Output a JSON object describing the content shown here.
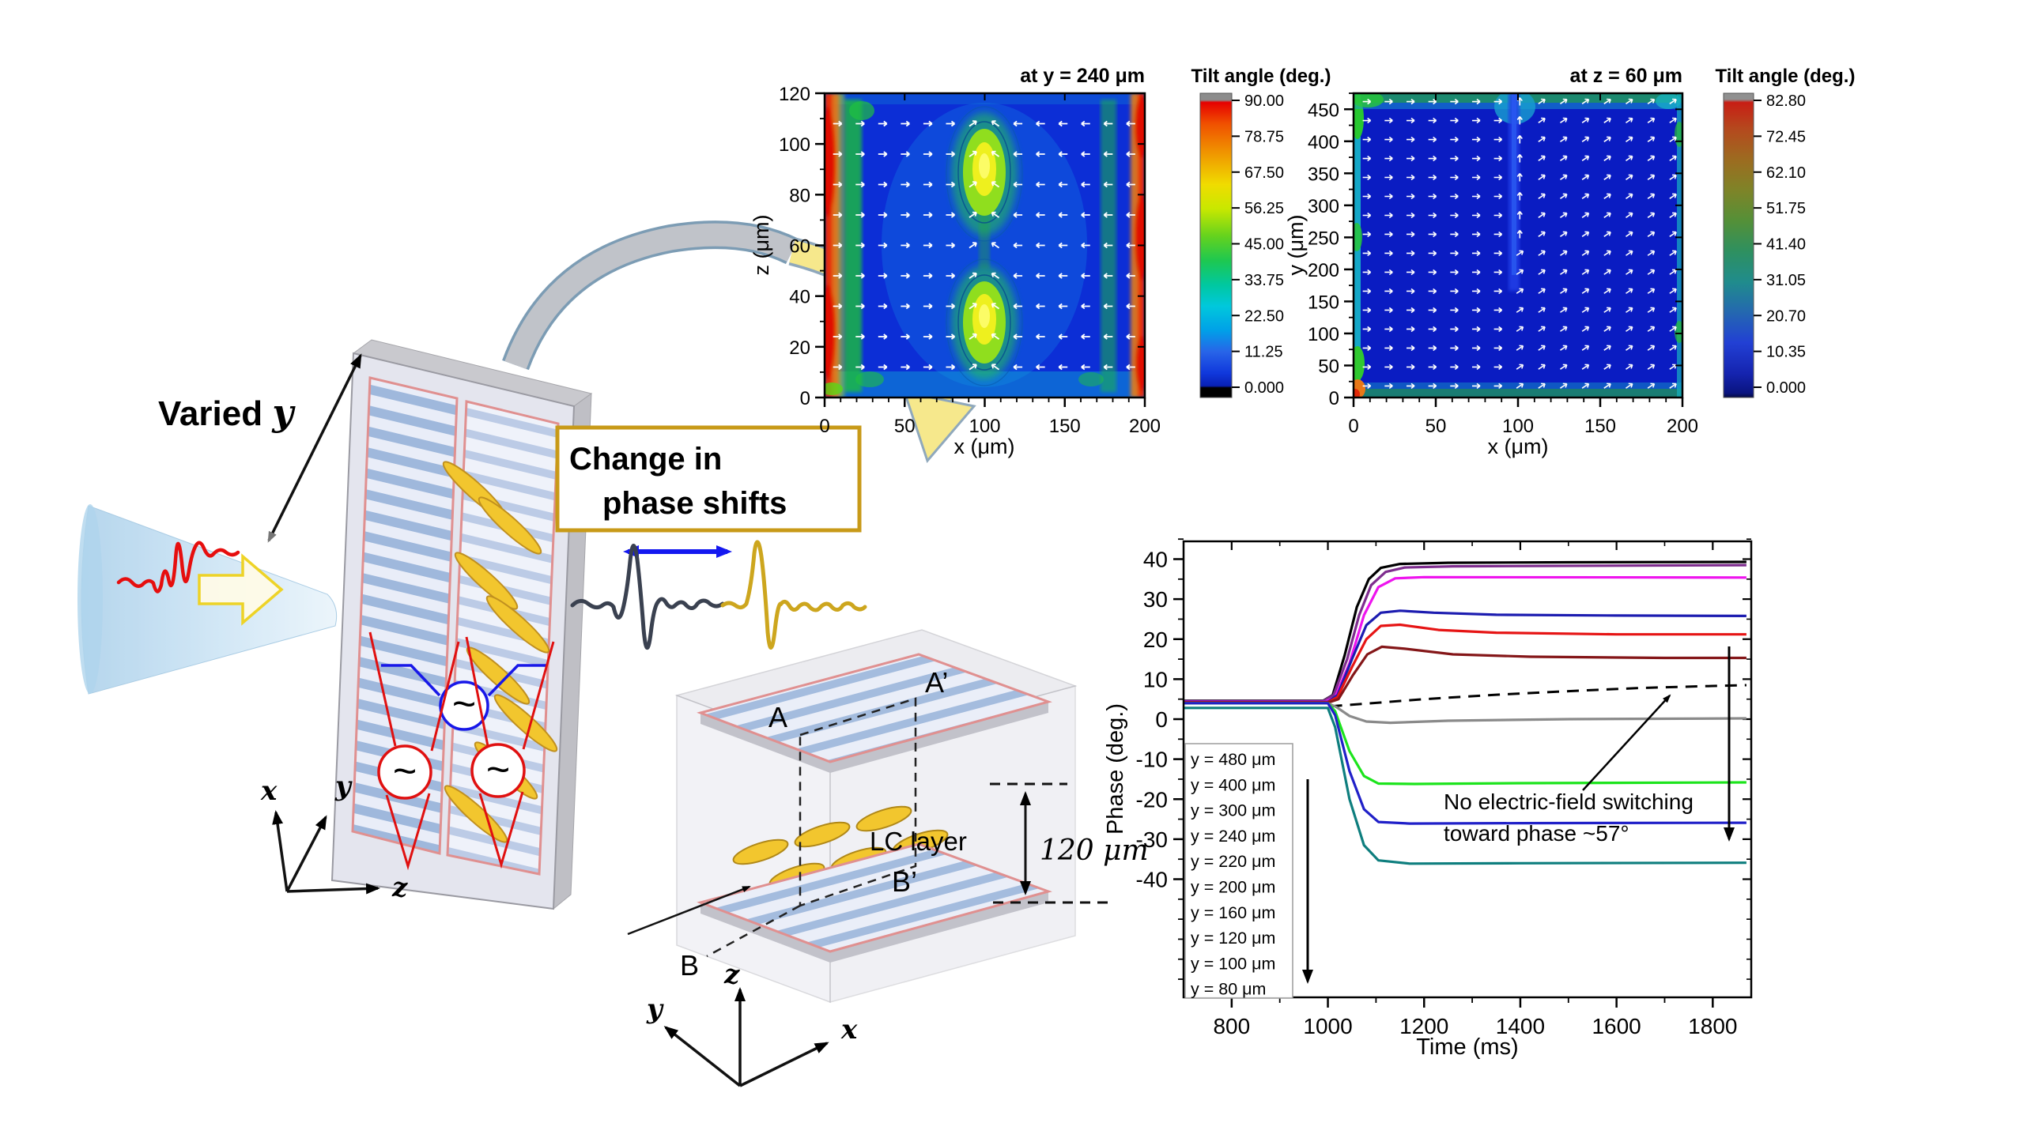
{
  "figure": {
    "left": {
      "varied_label": "Varied",
      "varied_var": "y",
      "axes": {
        "x": "x",
        "y": "y",
        "z": "z"
      },
      "ac_symbol": "~"
    },
    "center": {
      "box_line1": "Change in",
      "box_line2": "phase shifts",
      "cell": {
        "A": "A",
        "A_prime": "A’",
        "B": "B",
        "B_prime": "B’",
        "lc_layer": "LC layer",
        "thickness": "120 μm",
        "axes": {
          "x": "x",
          "y": "y",
          "z": "z"
        }
      }
    }
  },
  "chart_data": [
    {
      "type": "heatmap",
      "id": "tilt-map-xz",
      "title": "at y = 240 μm",
      "colorbar_title": "Tilt angle (deg.)",
      "colorbar_ticks": [
        "90.00",
        "78.75",
        "67.50",
        "56.25",
        "45.00",
        "33.75",
        "22.50",
        "11.25",
        "0.000"
      ],
      "xlabel": "x (μm)",
      "ylabel": "z (μm)",
      "xlim": [
        0,
        200
      ],
      "ylim": [
        0,
        120
      ],
      "xticks": [
        0,
        50,
        100,
        150,
        200
      ],
      "yticks": [
        0,
        20,
        40,
        60,
        80,
        100,
        120
      ],
      "x_minor_step": 10,
      "y_minor_step": 10,
      "quiver": "white director arrows, mostly horizontal",
      "features": [
        {
          "label": "high-tilt red band",
          "x": 0,
          "z": [
            0,
            120
          ],
          "color": "red-orange"
        },
        {
          "label": "high-tilt red band",
          "x": 200,
          "z": [
            0,
            120
          ],
          "color": "red-orange"
        },
        {
          "label": "mid-tilt lobe ~56 deg",
          "x": 100,
          "z": 30,
          "color": "yellow-green"
        },
        {
          "label": "mid-tilt lobe ~56 deg",
          "x": 100,
          "z": 88,
          "color": "yellow-green"
        },
        {
          "label": "green columns",
          "x": 20,
          "color": "green"
        },
        {
          "label": "low-tilt background ~11 deg",
          "color": "blue"
        }
      ]
    },
    {
      "type": "heatmap",
      "id": "tilt-map-xy",
      "title": "at z = 60 μm",
      "colorbar_title": "Tilt angle (deg.)",
      "colorbar_ticks": [
        "82.80",
        "72.45",
        "62.10",
        "51.75",
        "41.40",
        "31.05",
        "20.70",
        "10.35",
        "0.000"
      ],
      "xlabel": "x (μm)",
      "ylabel": "y (μm)",
      "xlim": [
        0,
        200
      ],
      "ylim": [
        0,
        475
      ],
      "xticks": [
        0,
        50,
        100,
        150,
        200
      ],
      "yticks": [
        0,
        50,
        100,
        150,
        200,
        250,
        300,
        350,
        400,
        450
      ],
      "x_minor_step": 10,
      "y_minor_step": 25,
      "quiver": "white director arrows: horizontal on left half, tilted on right half, vertical along center stripe",
      "features": [
        {
          "label": "low-tilt background ~5 deg",
          "color": "dark blue"
        },
        {
          "label": "edge bands ~20-30 deg",
          "color": "green-cyan"
        },
        {
          "label": "hot corner",
          "x": 0,
          "y": 0,
          "color": "orange-red"
        },
        {
          "label": "lighter disclination stripe",
          "x": 100,
          "y": [
            250,
            475
          ],
          "color": "lighter blue"
        }
      ]
    },
    {
      "type": "line",
      "id": "phase-vs-time",
      "xlabel": "Time (ms)",
      "ylabel": "Phase (deg.)",
      "xlim": [
        700,
        1880
      ],
      "ylim": [
        -70,
        45
      ],
      "xticks": [
        800,
        1000,
        1200,
        1400,
        1600,
        1800
      ],
      "yticks": [
        -40,
        -30,
        -20,
        -10,
        0,
        10,
        20,
        30,
        40
      ],
      "x_minor": [
        900,
        1100,
        1300,
        1500,
        1700
      ],
      "y_minor_step": 5,
      "annotation_line1": "No electric-field switching",
      "annotation_line2": "toward phase ~57°",
      "legend": [
        "y = 480 μm",
        "y = 400 μm",
        "y = 300 μm",
        "y = 240 μm",
        "y = 220 μm",
        "y = 200 μm",
        "y = 160 μm",
        "y = 120 μm",
        "y = 100 μm",
        "y =  80 μm"
      ],
      "series": [
        {
          "name": "y = 480 μm",
          "color": "#000000",
          "dash": false,
          "points": [
            [
              700,
              4.6
            ],
            [
              990,
              4.6
            ],
            [
              1010,
              6
            ],
            [
              1035,
              16
            ],
            [
              1060,
              28
            ],
            [
              1085,
              35
            ],
            [
              1110,
              37.8
            ],
            [
              1150,
              38.8
            ],
            [
              1250,
              39.1
            ],
            [
              1500,
              39.2
            ],
            [
              1870,
              39.3
            ]
          ]
        },
        {
          "name": "y = 400 μm",
          "color": "#7E2C8E",
          "dash": false,
          "points": [
            [
              700,
              4.5
            ],
            [
              990,
              4.5
            ],
            [
              1012,
              6
            ],
            [
              1040,
              15
            ],
            [
              1065,
              26
            ],
            [
              1090,
              33.5
            ],
            [
              1120,
              36.8
            ],
            [
              1160,
              37.9
            ],
            [
              1260,
              38.2
            ],
            [
              1870,
              38.5
            ]
          ]
        },
        {
          "name": "y = 300 μm",
          "color": "#EE14EE",
          "dash": false,
          "points": [
            [
              700,
              4.4
            ],
            [
              995,
              4.4
            ],
            [
              1015,
              5.5
            ],
            [
              1045,
              14
            ],
            [
              1075,
              26
            ],
            [
              1105,
              33
            ],
            [
              1140,
              35.2
            ],
            [
              1200,
              35.5
            ],
            [
              1870,
              35.4
            ]
          ]
        },
        {
          "name": "y = 240 μm",
          "color": "#1C1CB0",
          "dash": false,
          "points": [
            [
              700,
              4.3
            ],
            [
              1000,
              4.3
            ],
            [
              1020,
              6
            ],
            [
              1050,
              15
            ],
            [
              1080,
              23.5
            ],
            [
              1110,
              26.6
            ],
            [
              1150,
              27.1
            ],
            [
              1220,
              26.6
            ],
            [
              1350,
              26.1
            ],
            [
              1600,
              25.9
            ],
            [
              1870,
              25.8
            ]
          ]
        },
        {
          "name": "y = 220 μm",
          "color": "#E61414",
          "dash": false,
          "points": [
            [
              700,
              4.2
            ],
            [
              1000,
              4.2
            ],
            [
              1020,
              5.5
            ],
            [
              1050,
              13
            ],
            [
              1080,
              20
            ],
            [
              1110,
              23.3
            ],
            [
              1150,
              23.6
            ],
            [
              1230,
              22.3
            ],
            [
              1350,
              21.6
            ],
            [
              1600,
              21.2
            ],
            [
              1870,
              21.2
            ]
          ]
        },
        {
          "name": "y = 200 μm",
          "color": "#841618",
          "dash": false,
          "points": [
            [
              700,
              4.1
            ],
            [
              1000,
              4.1
            ],
            [
              1022,
              5
            ],
            [
              1052,
              11
            ],
            [
              1082,
              16.2
            ],
            [
              1112,
              18.1
            ],
            [
              1160,
              17.6
            ],
            [
              1260,
              16.2
            ],
            [
              1420,
              15.6
            ],
            [
              1700,
              15.3
            ],
            [
              1870,
              15.3
            ]
          ]
        },
        {
          "name": "no-field reference (dashed)",
          "color": "#000000",
          "dash": true,
          "points": [
            [
              1005,
              3.2
            ],
            [
              1080,
              3.9
            ],
            [
              1200,
              5.0
            ],
            [
              1350,
              6.1
            ],
            [
              1500,
              7.0
            ],
            [
              1650,
              7.8
            ],
            [
              1800,
              8.3
            ],
            [
              1870,
              8.5
            ]
          ]
        },
        {
          "name": "y = 160 μm",
          "color": "#8A8A8A",
          "dash": false,
          "points": [
            [
              700,
              4.0
            ],
            [
              1000,
              4.0
            ],
            [
              1018,
              3
            ],
            [
              1045,
              0.8
            ],
            [
              1080,
              -0.6
            ],
            [
              1130,
              -0.9
            ],
            [
              1250,
              -0.4
            ],
            [
              1500,
              0.0
            ],
            [
              1870,
              0.2
            ]
          ]
        },
        {
          "name": "y = 120 μm",
          "color": "#1CE41C",
          "dash": false,
          "points": [
            [
              700,
              4.0
            ],
            [
              1000,
              4.0
            ],
            [
              1015,
              2
            ],
            [
              1045,
              -8
            ],
            [
              1075,
              -14.2
            ],
            [
              1105,
              -16.1
            ],
            [
              1180,
              -16.2
            ],
            [
              1400,
              -16.0
            ],
            [
              1870,
              -15.8
            ]
          ]
        },
        {
          "name": "y = 100 μm",
          "color": "#2020C8",
          "dash": false,
          "points": [
            [
              700,
              4.0
            ],
            [
              1000,
              4.0
            ],
            [
              1015,
              1
            ],
            [
              1045,
              -13
            ],
            [
              1075,
              -22.5
            ],
            [
              1105,
              -25.7
            ],
            [
              1170,
              -26.1
            ],
            [
              1400,
              -26.0
            ],
            [
              1870,
              -25.9
            ]
          ]
        },
        {
          "name": "y = 80 μm",
          "color": "#0E7E7E",
          "dash": false,
          "points": [
            [
              700,
              2.8
            ],
            [
              1000,
              2.8
            ],
            [
              1015,
              -2
            ],
            [
              1045,
              -20
            ],
            [
              1075,
              -31.5
            ],
            [
              1105,
              -35.3
            ],
            [
              1170,
              -36.1
            ],
            [
              1400,
              -36.0
            ],
            [
              1870,
              -35.9
            ]
          ]
        }
      ]
    }
  ]
}
